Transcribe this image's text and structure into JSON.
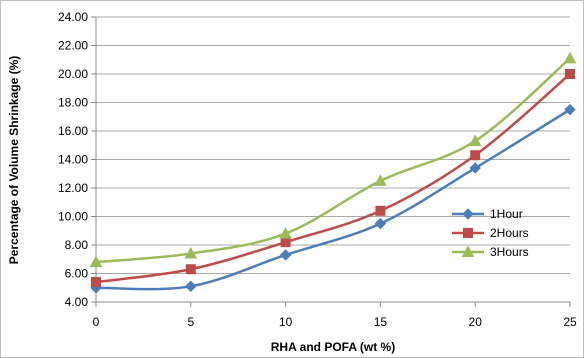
{
  "chart_data": {
    "type": "line",
    "xlabel": "RHA and POFA (wt %)",
    "ylabel": "Percentage of Volume Shrinkage (%)",
    "x": [
      0,
      5,
      10,
      15,
      20,
      25
    ],
    "x_tick_labels": [
      "0",
      "5",
      "10",
      "15",
      "20",
      "25"
    ],
    "ylim": [
      4.0,
      24.0
    ],
    "y_ticks": [
      4.0,
      6.0,
      8.0,
      10.0,
      12.0,
      14.0,
      16.0,
      18.0,
      20.0,
      22.0,
      24.0
    ],
    "y_tick_labels": [
      "4.00",
      "6.00",
      "8.00",
      "10.00",
      "12.00",
      "14.00",
      "16.00",
      "18.00",
      "20.00",
      "22.00",
      "24.00"
    ],
    "grid": "horizontal",
    "legend_position": "right",
    "series": [
      {
        "name": "1Hour",
        "color": "#4A7EBB",
        "marker": "diamond",
        "values": [
          5.0,
          5.1,
          7.3,
          9.5,
          13.4,
          17.5
        ]
      },
      {
        "name": "2Hours",
        "color": "#BE4B48",
        "marker": "square",
        "values": [
          5.4,
          6.3,
          8.2,
          10.4,
          14.3,
          20.0
        ]
      },
      {
        "name": "3Hours",
        "color": "#9BBB59",
        "marker": "triangle",
        "values": [
          6.8,
          7.4,
          8.8,
          12.5,
          15.3,
          21.1
        ]
      }
    ]
  }
}
